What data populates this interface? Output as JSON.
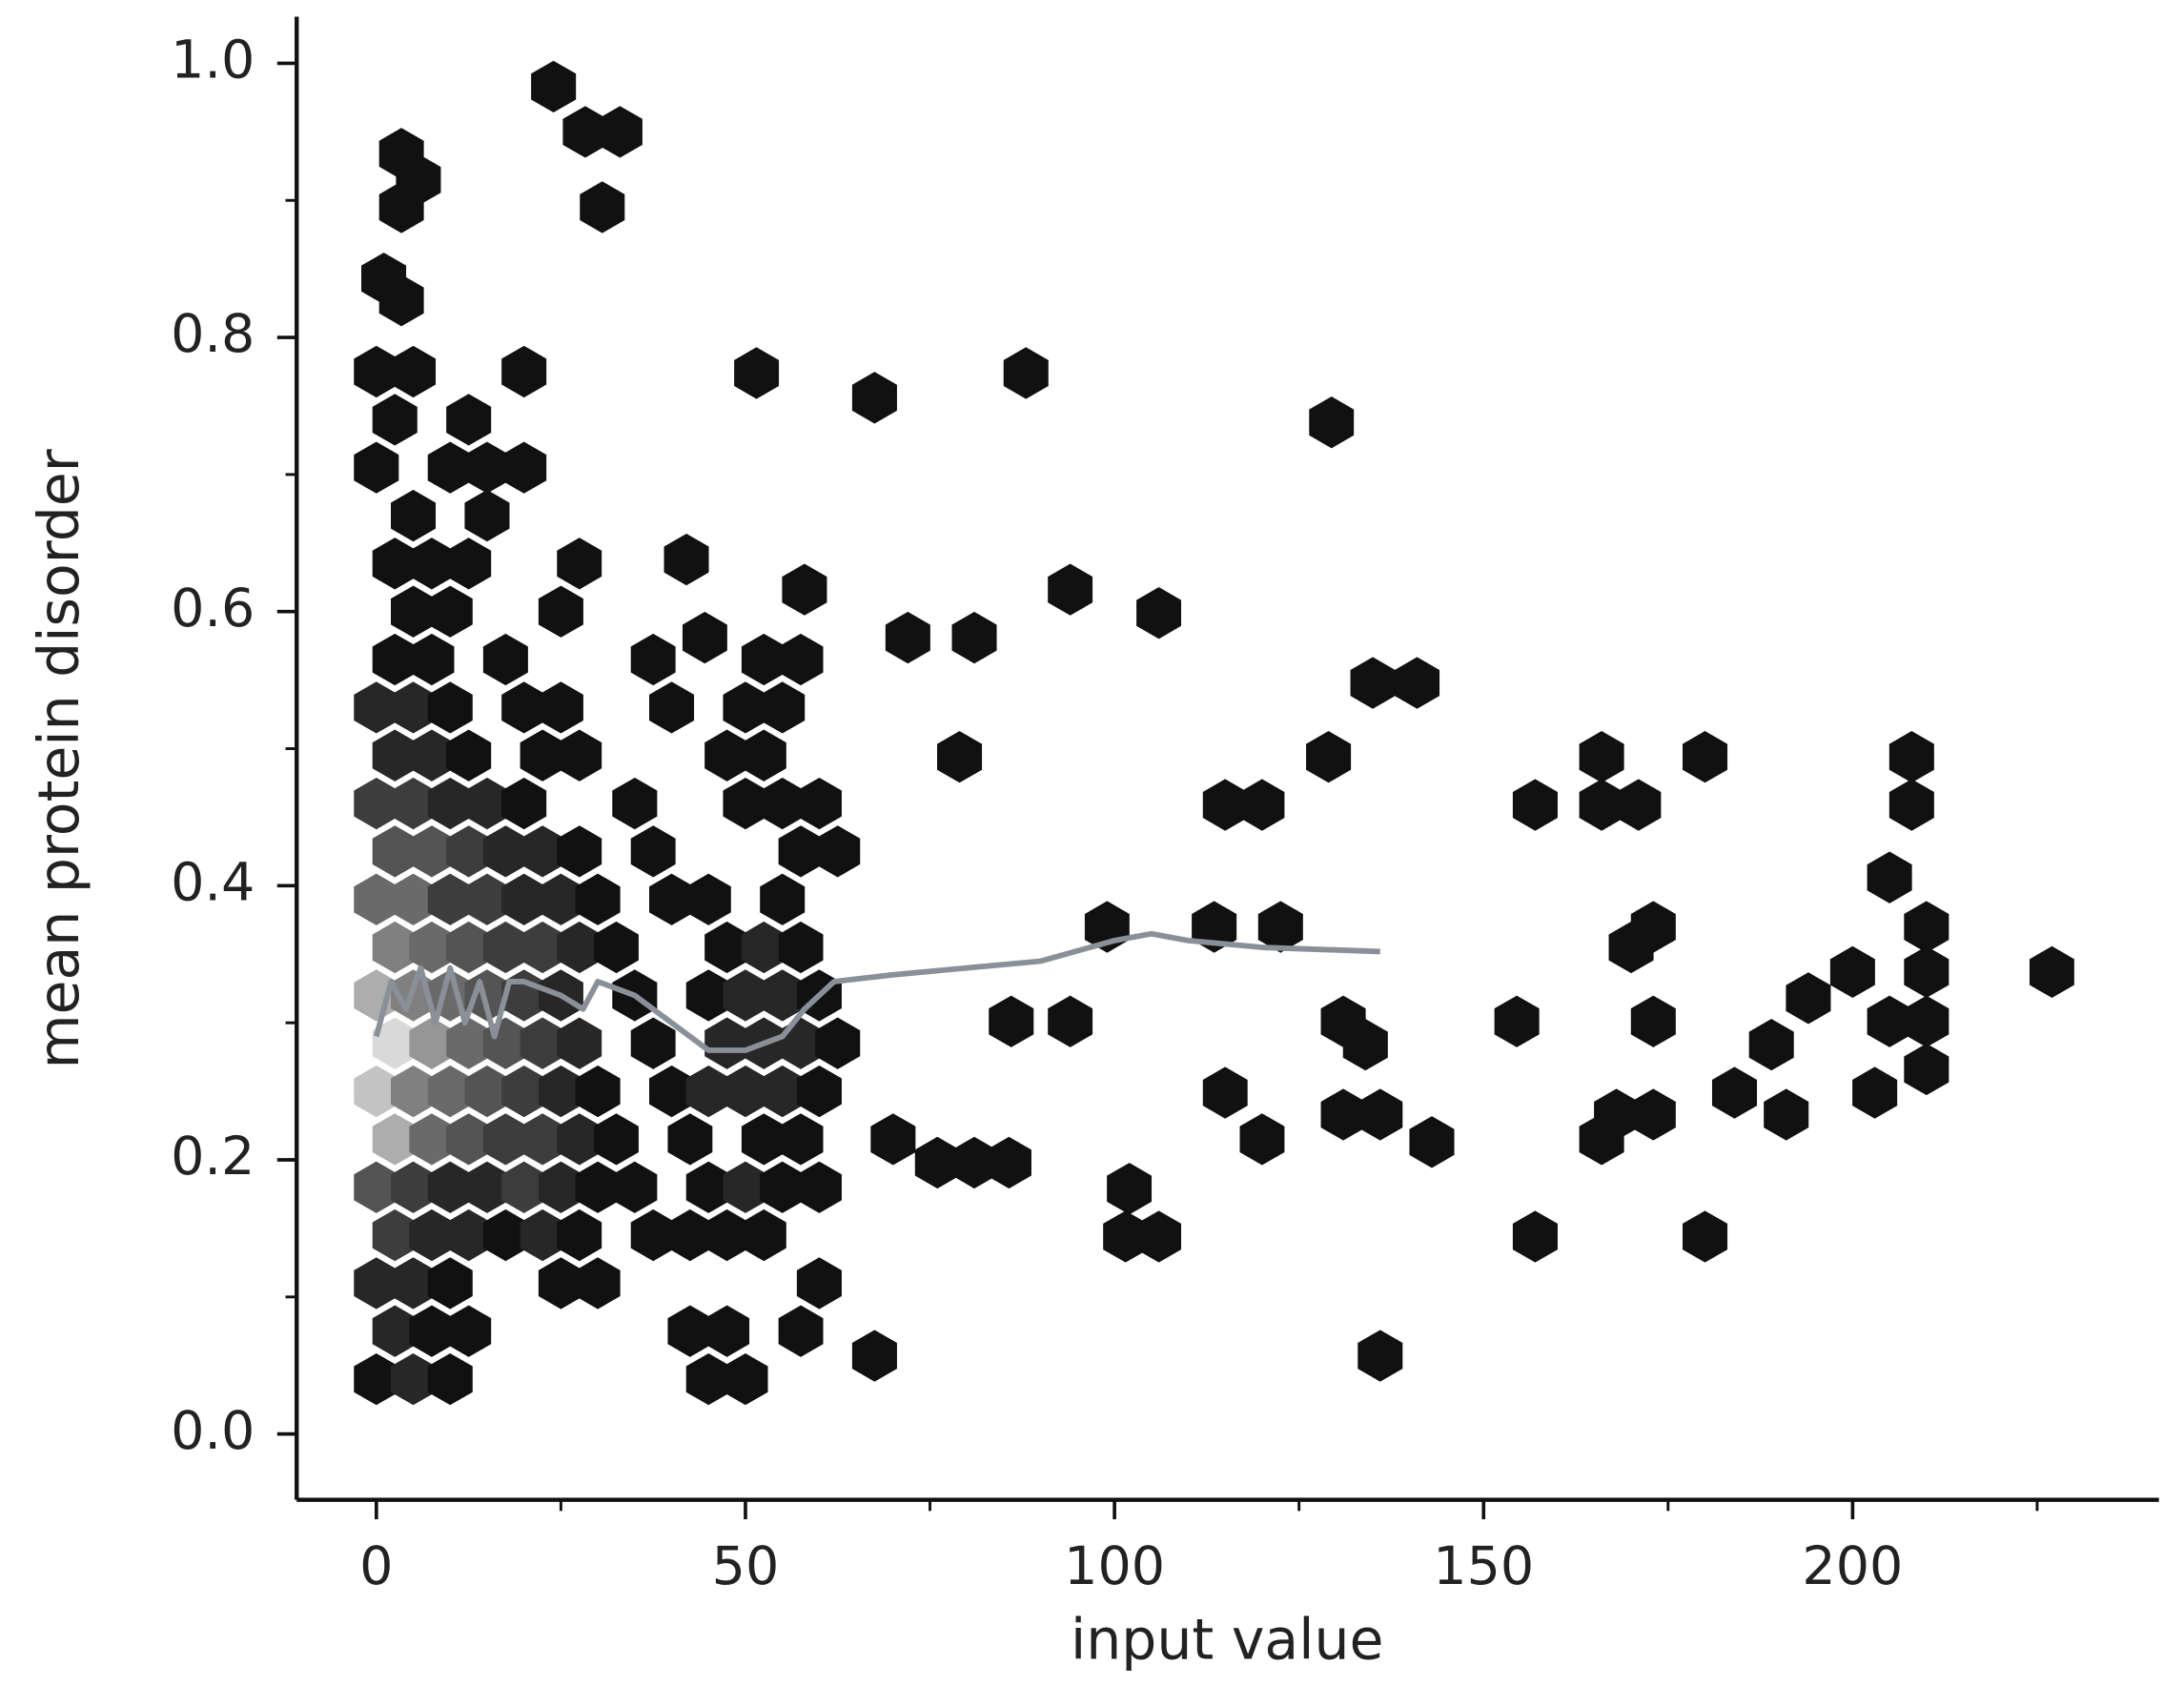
{
  "chart_data": {
    "type": "hexbin",
    "xlabel": "input value",
    "ylabel": "mean protein disorder",
    "xlim": [
      -10.8,
      241.5
    ],
    "ylim": [
      -0.048,
      1.034
    ],
    "xticks": [
      0,
      50,
      100,
      150,
      200
    ],
    "yticks": [
      {
        "value": 0,
        "label": "0.0"
      },
      0.2,
      0.4,
      0.6,
      0.8,
      {
        "value": 1,
        "label": "1.0"
      }
    ],
    "xminorticks": [
      25,
      75,
      125,
      175,
      225
    ],
    "yminorticks": [
      0.1,
      0.3,
      0.5,
      0.7,
      0.9
    ],
    "cmap": [
      "#111111",
      "#d9d9d9"
    ],
    "hexbins": {
      "x": [
        0,
        5,
        10,
        45,
        50,
        2.5,
        7.5,
        12.5,
        57.5,
        42.5,
        47.5,
        0,
        5,
        10,
        25,
        30,
        60,
        2.5,
        7.5,
        12.5,
        17.5,
        22.5,
        27.5,
        37.5,
        42.5,
        47.5,
        52.5,
        0,
        5,
        10,
        15,
        20,
        25,
        30,
        35,
        45,
        50,
        55,
        60,
        2.5,
        7.5,
        12.5,
        17.5,
        22.5,
        27.5,
        32.5,
        42.5,
        52.5,
        57.5,
        0,
        5,
        10,
        15,
        20,
        25,
        30,
        40,
        45,
        50,
        55,
        60,
        2.5,
        7.5,
        12.5,
        17.5,
        22.5,
        27.5,
        37.5,
        47.5,
        52.5,
        57.5,
        62.5,
        0,
        5,
        10,
        15,
        20,
        25,
        35,
        45,
        50,
        55,
        60,
        2.5,
        7.5,
        12.5,
        17.5,
        22.5,
        27.5,
        32.5,
        47.5,
        52.5,
        57.5,
        0,
        5,
        10,
        15,
        20,
        25,
        30,
        40,
        45,
        55,
        2.5,
        7.5,
        12.5,
        17.5,
        22.5,
        27.5,
        37.5,
        57.5,
        62.5,
        0,
        5,
        10,
        15,
        20,
        35,
        50,
        55,
        60,
        2.5,
        7.5,
        12.5,
        22.5,
        27.5,
        47.5,
        52.5,
        0,
        5,
        10,
        20,
        25,
        40,
        50,
        55,
        2.5,
        7.5,
        17.5,
        37.5,
        52.5,
        57.5,
        5,
        10,
        25,
        2.5,
        7.5,
        12.5,
        27.5,
        5,
        15,
        0,
        10,
        15,
        20,
        2.5,
        12.5,
        0,
        5,
        20,
        24,
        28.3,
        33,
        30.6,
        3.4,
        5.7,
        3.4,
        1,
        3.4,
        51.5,
        88,
        67.5,
        129.4,
        94,
        106,
        58,
        72,
        81,
        42,
        44.5,
        135,
        141,
        166,
        180,
        208,
        79,
        157,
        166,
        171,
        208,
        115,
        120,
        205,
        210,
        173,
        170,
        227,
        200,
        210,
        194,
        205,
        210,
        154.5,
        173,
        189,
        210,
        184,
        203,
        173,
        168,
        166,
        191,
        157,
        180,
        136,
        67.5,
        101.5,
        106,
        102,
        131,
        136,
        120,
        115,
        94,
        86,
        76,
        81,
        85.7,
        70,
        131,
        134,
        143,
        122.5,
        113.5,
        99,
        129
      ],
      "y": [
        0.04,
        0.04,
        0.04,
        0.04,
        0.04,
        0.075,
        0.075,
        0.075,
        0.075,
        0.075,
        0.075,
        0.11,
        0.11,
        0.11,
        0.11,
        0.11,
        0.11,
        0.145,
        0.145,
        0.145,
        0.145,
        0.145,
        0.145,
        0.145,
        0.145,
        0.145,
        0.145,
        0.18,
        0.18,
        0.18,
        0.18,
        0.18,
        0.18,
        0.18,
        0.18,
        0.18,
        0.18,
        0.18,
        0.18,
        0.215,
        0.215,
        0.215,
        0.215,
        0.215,
        0.215,
        0.215,
        0.215,
        0.215,
        0.215,
        0.25,
        0.25,
        0.25,
        0.25,
        0.25,
        0.25,
        0.25,
        0.25,
        0.25,
        0.25,
        0.25,
        0.25,
        0.285,
        0.285,
        0.285,
        0.285,
        0.285,
        0.285,
        0.285,
        0.285,
        0.285,
        0.285,
        0.285,
        0.32,
        0.32,
        0.32,
        0.32,
        0.32,
        0.32,
        0.32,
        0.32,
        0.32,
        0.32,
        0.32,
        0.355,
        0.355,
        0.355,
        0.355,
        0.355,
        0.355,
        0.355,
        0.355,
        0.355,
        0.355,
        0.39,
        0.39,
        0.39,
        0.39,
        0.39,
        0.39,
        0.39,
        0.39,
        0.39,
        0.39,
        0.425,
        0.425,
        0.425,
        0.425,
        0.425,
        0.425,
        0.425,
        0.425,
        0.425,
        0.46,
        0.46,
        0.46,
        0.46,
        0.46,
        0.46,
        0.46,
        0.46,
        0.46,
        0.495,
        0.495,
        0.495,
        0.495,
        0.495,
        0.495,
        0.495,
        0.53,
        0.53,
        0.53,
        0.53,
        0.53,
        0.53,
        0.53,
        0.53,
        0.565,
        0.565,
        0.565,
        0.565,
        0.565,
        0.565,
        0.6,
        0.6,
        0.6,
        0.635,
        0.635,
        0.635,
        0.635,
        0.67,
        0.67,
        0.705,
        0.705,
        0.705,
        0.705,
        0.74,
        0.74,
        0.775,
        0.775,
        0.775,
        0.983,
        0.95,
        0.95,
        0.895,
        0.934,
        0.915,
        0.895,
        0.843,
        0.827,
        0.774,
        0.774,
        0.756,
        0.738,
        0.616,
        0.599,
        0.616,
        0.581,
        0.581,
        0.638,
        0.581,
        0.548,
        0.548,
        0.494,
        0.494,
        0.494,
        0.494,
        0.459,
        0.459,
        0.459,
        0.459,
        0.459,
        0.459,
        0.406,
        0.37,
        0.37,
        0.355,
        0.337,
        0.337,
        0.337,
        0.318,
        0.301,
        0.301,
        0.301,
        0.301,
        0.284,
        0.266,
        0.249,
        0.249,
        0.233,
        0.233,
        0.215,
        0.233,
        0.144,
        0.144,
        0.057,
        0.057,
        0.144,
        0.144,
        0.179,
        0.233,
        0.233,
        0.215,
        0.249,
        0.301,
        0.301,
        0.198,
        0.198,
        0.198,
        0.215,
        0.301,
        0.284,
        0.213,
        0.37,
        0.37,
        0.37,
        0.494
      ],
      "counts": [
        1,
        2,
        1,
        1,
        1,
        2,
        1,
        1,
        1,
        1,
        1,
        2,
        2,
        1,
        1,
        1,
        1,
        3,
        2,
        2,
        1,
        2,
        1,
        1,
        1,
        1,
        1,
        4,
        3,
        2,
        2,
        3,
        2,
        1,
        1,
        1,
        2,
        1,
        1,
        8,
        5,
        4,
        3,
        3,
        2,
        1,
        1,
        1,
        1,
        9,
        6,
        5,
        4,
        3,
        2,
        1,
        1,
        2,
        2,
        2,
        1,
        10,
        7,
        5,
        4,
        3,
        2,
        1,
        2,
        2,
        2,
        1,
        8,
        6,
        5,
        4,
        3,
        2,
        1,
        1,
        2,
        2,
        1,
        6,
        5,
        4,
        3,
        3,
        2,
        1,
        1,
        2,
        1,
        5,
        5,
        3,
        3,
        2,
        2,
        1,
        1,
        1,
        1,
        4,
        4,
        3,
        2,
        2,
        1,
        1,
        1,
        1,
        3,
        3,
        2,
        2,
        1,
        1,
        1,
        1,
        1,
        2,
        2,
        1,
        1,
        1,
        1,
        1,
        2,
        2,
        1,
        1,
        1,
        1,
        1,
        1,
        1,
        1,
        1,
        1,
        1,
        1,
        1,
        1,
        1,
        1,
        1,
        1,
        1,
        1,
        1,
        1,
        1,
        1,
        1,
        1,
        1,
        1,
        1,
        1,
        1,
        1,
        1,
        1,
        1,
        1,
        1,
        1,
        1,
        1,
        1,
        1,
        1,
        1,
        1,
        1,
        1,
        1,
        1,
        1,
        1,
        1,
        1,
        1,
        1,
        1,
        1,
        1,
        1,
        1,
        1,
        1,
        1,
        1,
        1,
        1,
        1,
        1,
        1,
        1,
        1,
        1,
        1,
        1,
        1,
        1,
        1,
        1,
        1,
        1,
        1,
        1,
        1,
        1,
        1,
        1,
        1,
        1,
        1,
        1,
        1,
        1,
        1,
        1,
        1,
        1,
        1,
        1,
        1,
        1,
        1,
        1,
        1,
        1,
        1,
        1
      ]
    },
    "trend": {
      "color": "#8a9099",
      "x": [
        0,
        2,
        4,
        6,
        8,
        10,
        12,
        14,
        16,
        18,
        20,
        25,
        28,
        30,
        35,
        40,
        45,
        50,
        55,
        58,
        62,
        70,
        80,
        90,
        100,
        105,
        110,
        120,
        136
      ],
      "y": [
        0.29,
        0.33,
        0.31,
        0.34,
        0.3,
        0.34,
        0.3,
        0.33,
        0.29,
        0.33,
        0.33,
        0.32,
        0.31,
        0.33,
        0.32,
        0.3,
        0.28,
        0.28,
        0.29,
        0.31,
        0.33,
        0.335,
        0.34,
        0.345,
        0.36,
        0.365,
        0.36,
        0.355,
        0.352
      ]
    }
  }
}
